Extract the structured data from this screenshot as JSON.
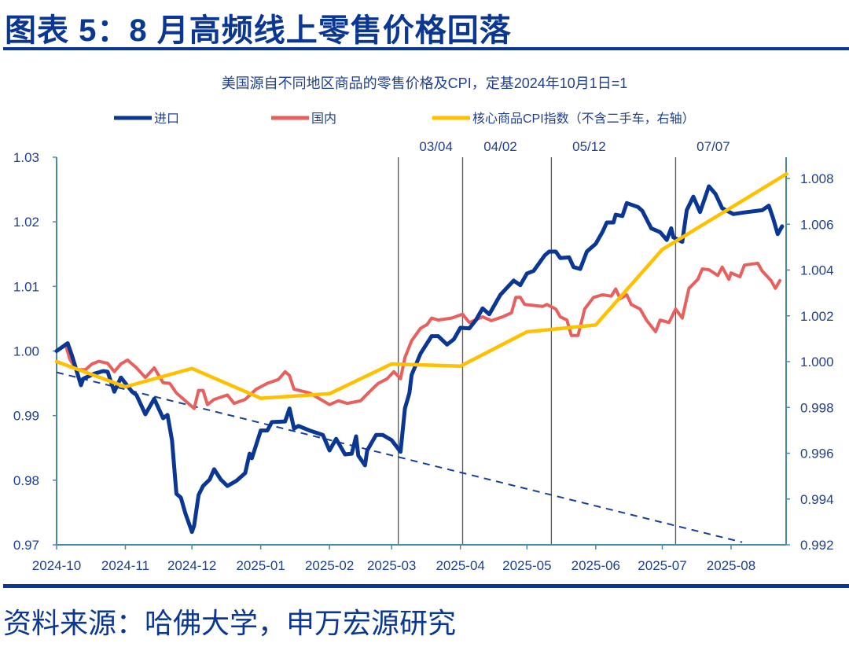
{
  "header": {
    "title": "图表 5：8 月高频线上零售价格回落"
  },
  "footer": {
    "source": "资料来源：哈佛大学，申万宏源研究"
  },
  "chart_data": {
    "type": "line",
    "title": "美国源自不同地区商品的零售价格及CPI，定基2024年10月1日=1",
    "legend_position": "top",
    "grid": false,
    "colors": {
      "import": "#0a3694",
      "domestic": "#e8605e",
      "cpi": "#ffc000",
      "axis": "#4a8aa3",
      "text": "#1f3f8f"
    },
    "x_ticks": [
      "2024-10",
      "2024-11",
      "2024-12",
      "2025-01",
      "2025-02",
      "2025-03",
      "2025-04",
      "2025-05",
      "2025-06",
      "2025-07",
      "2025-08"
    ],
    "y_left": {
      "range": [
        0.97,
        1.03
      ],
      "ticks": [
        "1.03",
        "1.02",
        "1.01",
        "1.00",
        "0.99",
        "0.98",
        "0.97"
      ]
    },
    "y_right": {
      "range": [
        0.992,
        1.008
      ],
      "ticks": [
        "1.008",
        "1.006",
        "1.004",
        "1.002",
        "1.000",
        "0.998",
        "0.996",
        "0.994",
        "0.992"
      ]
    },
    "vlines": [
      {
        "date": "2025-03-04",
        "label": "03/04"
      },
      {
        "date": "2025-04-02",
        "label": "04/02"
      },
      {
        "date": "2025-05-12",
        "label": "05/12"
      },
      {
        "date": "2025-07-07",
        "label": "07/07"
      }
    ],
    "series": [
      {
        "name": "进口",
        "axis": "left",
        "key": "import",
        "points": [
          [
            "2024-10-01",
            1.0
          ],
          [
            "2024-10-06",
            1.0012
          ],
          [
            "2024-10-08",
            0.9992
          ],
          [
            "2024-10-12",
            0.9947
          ],
          [
            "2024-10-13",
            0.9957
          ],
          [
            "2024-10-18",
            0.9965
          ],
          [
            "2024-10-22",
            0.9969
          ],
          [
            "2024-10-24",
            0.9968
          ],
          [
            "2024-10-27",
            0.9937
          ],
          [
            "2024-10-30",
            0.9959
          ],
          [
            "2024-11-04",
            0.9937
          ],
          [
            "2024-11-06",
            0.9932
          ],
          [
            "2024-11-10",
            0.9902
          ],
          [
            "2024-11-14",
            0.9926
          ],
          [
            "2024-11-18",
            0.9896
          ],
          [
            "2024-11-20",
            0.9901
          ],
          [
            "2024-11-22",
            0.9862
          ],
          [
            "2024-11-24",
            0.9779
          ],
          [
            "2024-11-26",
            0.9773
          ],
          [
            "2024-11-28",
            0.9749
          ],
          [
            "2024-12-01",
            0.972
          ],
          [
            "2024-12-02",
            0.973
          ],
          [
            "2024-12-04",
            0.9777
          ],
          [
            "2024-12-06",
            0.9791
          ],
          [
            "2024-12-09",
            0.9801
          ],
          [
            "2024-12-11",
            0.9817
          ],
          [
            "2024-12-14",
            0.9801
          ],
          [
            "2024-12-17",
            0.9791
          ],
          [
            "2024-12-21",
            0.9799
          ],
          [
            "2024-12-25",
            0.9811
          ],
          [
            "2024-12-27",
            0.9841
          ],
          [
            "2024-12-28",
            0.9834
          ],
          [
            "2025-01-01",
            0.9877
          ],
          [
            "2025-01-04",
            0.9877
          ],
          [
            "2025-01-06",
            0.989
          ],
          [
            "2025-01-12",
            0.9891
          ],
          [
            "2025-01-14",
            0.9911
          ],
          [
            "2025-01-16",
            0.988
          ],
          [
            "2025-01-18",
            0.9884
          ],
          [
            "2025-01-23",
            0.9877
          ],
          [
            "2025-01-29",
            0.987
          ],
          [
            "2025-02-01",
            0.9846
          ],
          [
            "2025-02-04",
            0.9864
          ],
          [
            "2025-02-08",
            0.984
          ],
          [
            "2025-02-11",
            0.9841
          ],
          [
            "2025-02-13",
            0.9868
          ],
          [
            "2025-02-14",
            0.9838
          ],
          [
            "2025-02-17",
            0.9823
          ],
          [
            "2025-02-18",
            0.9846
          ],
          [
            "2025-02-22",
            0.987
          ],
          [
            "2025-02-25",
            0.987
          ],
          [
            "2025-03-01",
            0.9862
          ],
          [
            "2025-03-05",
            0.9844
          ],
          [
            "2025-03-07",
            0.9911
          ],
          [
            "2025-03-09",
            0.9935
          ],
          [
            "2025-03-10",
            0.9963
          ],
          [
            "2025-03-14",
            0.9996
          ],
          [
            "2025-03-19",
            1.0023
          ],
          [
            "2025-03-22",
            1.0023
          ],
          [
            "2025-03-26",
            1.001
          ],
          [
            "2025-03-29",
            1.0018
          ],
          [
            "2025-04-01",
            1.0036
          ],
          [
            "2025-04-05",
            1.0035
          ],
          [
            "2025-04-08",
            1.0048
          ],
          [
            "2025-04-11",
            1.0066
          ],
          [
            "2025-04-14",
            1.0057
          ],
          [
            "2025-04-19",
            1.0087
          ],
          [
            "2025-04-25",
            1.0109
          ],
          [
            "2025-04-28",
            1.0102
          ],
          [
            "2025-05-01",
            1.012
          ],
          [
            "2025-05-04",
            1.0124
          ],
          [
            "2025-05-09",
            1.0148
          ],
          [
            "2025-05-11",
            1.0154
          ],
          [
            "2025-05-14",
            1.0154
          ],
          [
            "2025-05-16",
            1.0144
          ],
          [
            "2025-05-20",
            1.0145
          ],
          [
            "2025-05-22",
            1.013
          ],
          [
            "2025-05-25",
            1.0127
          ],
          [
            "2025-05-28",
            1.0154
          ],
          [
            "2025-06-01",
            1.0166
          ],
          [
            "2025-06-04",
            1.0184
          ],
          [
            "2025-06-06",
            1.0199
          ],
          [
            "2025-06-09",
            1.0199
          ],
          [
            "2025-06-10",
            1.0211
          ],
          [
            "2025-06-13",
            1.0209
          ],
          [
            "2025-06-15",
            1.0229
          ],
          [
            "2025-06-20",
            1.0223
          ],
          [
            "2025-06-22",
            1.0217
          ],
          [
            "2025-06-26",
            1.019
          ],
          [
            "2025-06-30",
            1.0184
          ],
          [
            "2025-07-03",
            1.0172
          ],
          [
            "2025-07-05",
            1.019
          ],
          [
            "2025-07-06",
            1.0176
          ],
          [
            "2025-07-10",
            1.0169
          ],
          [
            "2025-07-12",
            1.0218
          ],
          [
            "2025-07-15",
            1.0239
          ],
          [
            "2025-07-18",
            1.0215
          ],
          [
            "2025-07-22",
            1.0255
          ],
          [
            "2025-07-25",
            1.0243
          ],
          [
            "2025-07-28",
            1.0221
          ],
          [
            "2025-08-02",
            1.0212
          ],
          [
            "2025-08-08",
            1.0215
          ],
          [
            "2025-08-15",
            1.0218
          ],
          [
            "2025-08-18",
            1.0225
          ],
          [
            "2025-08-20",
            1.0205
          ],
          [
            "2025-08-22",
            1.0181
          ],
          [
            "2025-08-24",
            1.0193
          ]
        ]
      },
      {
        "name": "国内",
        "axis": "left",
        "key": "domestic",
        "points": [
          [
            "2024-10-01",
            1.0
          ],
          [
            "2024-10-05",
            1.001
          ],
          [
            "2024-10-07",
            0.9987
          ],
          [
            "2024-10-10",
            0.9971
          ],
          [
            "2024-10-14",
            0.9971
          ],
          [
            "2024-10-17",
            0.998
          ],
          [
            "2024-10-20",
            0.9984
          ],
          [
            "2024-10-24",
            0.9981
          ],
          [
            "2024-10-27",
            0.9968
          ],
          [
            "2024-10-30",
            0.998
          ],
          [
            "2024-11-02",
            0.9986
          ],
          [
            "2024-11-06",
            0.9974
          ],
          [
            "2024-11-10",
            0.9959
          ],
          [
            "2024-11-14",
            0.9974
          ],
          [
            "2024-11-18",
            0.9951
          ],
          [
            "2024-11-21",
            0.995
          ],
          [
            "2024-11-24",
            0.9935
          ],
          [
            "2024-11-28",
            0.9923
          ],
          [
            "2024-12-02",
            0.9911
          ],
          [
            "2024-12-04",
            0.9939
          ],
          [
            "2024-12-06",
            0.9939
          ],
          [
            "2024-12-08",
            0.9917
          ],
          [
            "2024-12-11",
            0.9925
          ],
          [
            "2024-12-17",
            0.9932
          ],
          [
            "2024-12-20",
            0.9919
          ],
          [
            "2024-12-25",
            0.9925
          ],
          [
            "2024-12-30",
            0.9941
          ],
          [
            "2025-01-04",
            0.995
          ],
          [
            "2025-01-09",
            0.9956
          ],
          [
            "2025-01-12",
            0.9968
          ],
          [
            "2025-01-14",
            0.9962
          ],
          [
            "2025-01-16",
            0.9941
          ],
          [
            "2025-01-23",
            0.9935
          ],
          [
            "2025-01-28",
            0.9925
          ],
          [
            "2025-02-01",
            0.9917
          ],
          [
            "2025-02-05",
            0.9923
          ],
          [
            "2025-02-09",
            0.9919
          ],
          [
            "2025-02-15",
            0.9923
          ],
          [
            "2025-02-19",
            0.9937
          ],
          [
            "2025-02-23",
            0.995
          ],
          [
            "2025-02-27",
            0.9957
          ],
          [
            "2025-03-02",
            0.9968
          ],
          [
            "2025-03-05",
            0.9957
          ],
          [
            "2025-03-07",
            0.999
          ],
          [
            "2025-03-10",
            1.0016
          ],
          [
            "2025-03-14",
            1.0035
          ],
          [
            "2025-03-17",
            1.0041
          ],
          [
            "2025-03-19",
            1.0051
          ],
          [
            "2025-03-22",
            1.0048
          ],
          [
            "2025-03-28",
            1.0051
          ],
          [
            "2025-04-02",
            1.0057
          ],
          [
            "2025-04-05",
            1.0044
          ],
          [
            "2025-04-11",
            1.0053
          ],
          [
            "2025-04-15",
            1.0047
          ],
          [
            "2025-04-20",
            1.0053
          ],
          [
            "2025-04-24",
            1.0059
          ],
          [
            "2025-04-26",
            1.0083
          ],
          [
            "2025-04-28",
            1.0083
          ],
          [
            "2025-04-30",
            1.0072
          ],
          [
            "2025-05-08",
            1.0069
          ],
          [
            "2025-05-10",
            1.0072
          ],
          [
            "2025-05-14",
            1.0065
          ],
          [
            "2025-05-16",
            1.0053
          ],
          [
            "2025-05-19",
            1.0048
          ],
          [
            "2025-05-21",
            1.0024
          ],
          [
            "2025-05-24",
            1.0024
          ],
          [
            "2025-05-26",
            1.0051
          ],
          [
            "2025-05-27",
            1.0065
          ],
          [
            "2025-05-31",
            1.0083
          ],
          [
            "2025-06-04",
            1.0087
          ],
          [
            "2025-06-08",
            1.0085
          ],
          [
            "2025-06-10",
            1.0096
          ],
          [
            "2025-06-12",
            1.0081
          ],
          [
            "2025-06-15",
            1.0087
          ],
          [
            "2025-06-17",
            1.0072
          ],
          [
            "2025-06-21",
            1.0065
          ],
          [
            "2025-06-24",
            1.0047
          ],
          [
            "2025-06-28",
            1.003
          ],
          [
            "2025-06-30",
            1.0048
          ],
          [
            "2025-07-04",
            1.0044
          ],
          [
            "2025-07-07",
            1.0065
          ],
          [
            "2025-07-10",
            1.0051
          ],
          [
            "2025-07-13",
            1.0097
          ],
          [
            "2025-07-17",
            1.0111
          ],
          [
            "2025-07-19",
            1.0127
          ],
          [
            "2025-07-22",
            1.0126
          ],
          [
            "2025-07-26",
            1.0117
          ],
          [
            "2025-07-28",
            1.013
          ],
          [
            "2025-07-31",
            1.0111
          ],
          [
            "2025-08-01",
            1.0121
          ],
          [
            "2025-08-05",
            1.0115
          ],
          [
            "2025-08-07",
            1.0133
          ],
          [
            "2025-08-13",
            1.0136
          ],
          [
            "2025-08-15",
            1.0124
          ],
          [
            "2025-08-19",
            1.0109
          ],
          [
            "2025-08-21",
            1.0097
          ],
          [
            "2025-08-23",
            1.0109
          ]
        ]
      },
      {
        "name": "核心商品CPI指数（不含二手车，右轴）",
        "axis": "right",
        "key": "cpi",
        "points": [
          [
            "2024-10-01",
            1.0
          ],
          [
            "2024-11-01",
            0.9989
          ],
          [
            "2024-12-01",
            0.9997
          ],
          [
            "2025-01-01",
            0.9984
          ],
          [
            "2025-02-01",
            0.9986
          ],
          [
            "2025-03-01",
            0.9999
          ],
          [
            "2025-04-01",
            0.9998
          ],
          [
            "2025-05-01",
            1.0013
          ],
          [
            "2025-06-01",
            1.0016
          ],
          [
            "2025-07-01",
            1.0049
          ],
          [
            "2025-08-26",
            1.0082
          ]
        ]
      }
    ],
    "trendline": {
      "axis": "left",
      "style": "dashed",
      "points": [
        [
          "2024-10-01",
          0.9967
        ],
        [
          "2025-08-06",
          0.9704
        ]
      ]
    }
  }
}
